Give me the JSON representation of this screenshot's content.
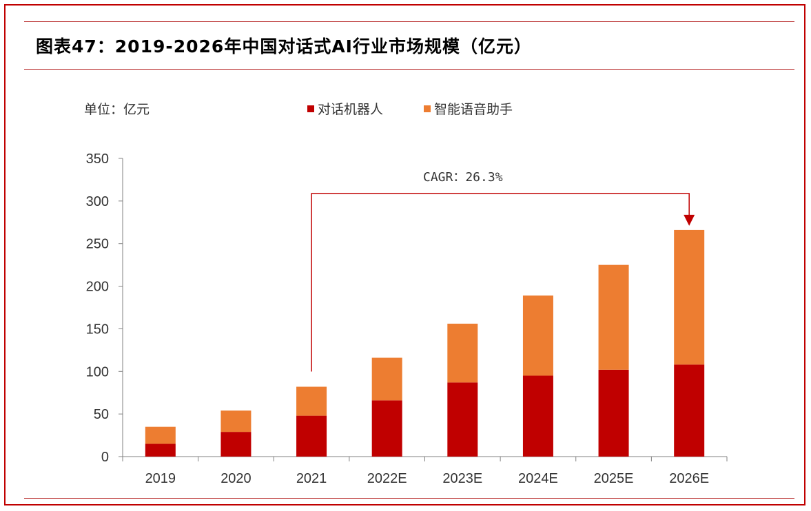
{
  "title": "图表47：2019-2026年中国对话式AI行业市场规模（亿元）",
  "colors": {
    "series_1": "#c00000",
    "series_2": "#ed7d31",
    "frame": "#c00000",
    "axis": "#808080",
    "annotation": "#c00000"
  },
  "chart_data": {
    "type": "bar",
    "stacked": true,
    "unit_label": "单位：亿元",
    "categories": [
      "2019",
      "2020",
      "2021",
      "2022E",
      "2023E",
      "2024E",
      "2025E",
      "2026E"
    ],
    "series": [
      {
        "name": "对话机器人",
        "values": [
          15,
          29,
          48,
          66,
          87,
          95,
          102,
          108
        ]
      },
      {
        "name": "智能语音助手",
        "values": [
          20,
          25,
          34,
          50,
          69,
          94,
          123,
          158
        ]
      }
    ],
    "ylim": [
      0,
      350
    ],
    "yticks": [
      0,
      50,
      100,
      150,
      200,
      250,
      300,
      350
    ],
    "grid": false,
    "legend_position": "top-center",
    "annotation": {
      "text": "CAGR：26.3%",
      "from_category": "2021",
      "to_category": "2026E"
    }
  }
}
